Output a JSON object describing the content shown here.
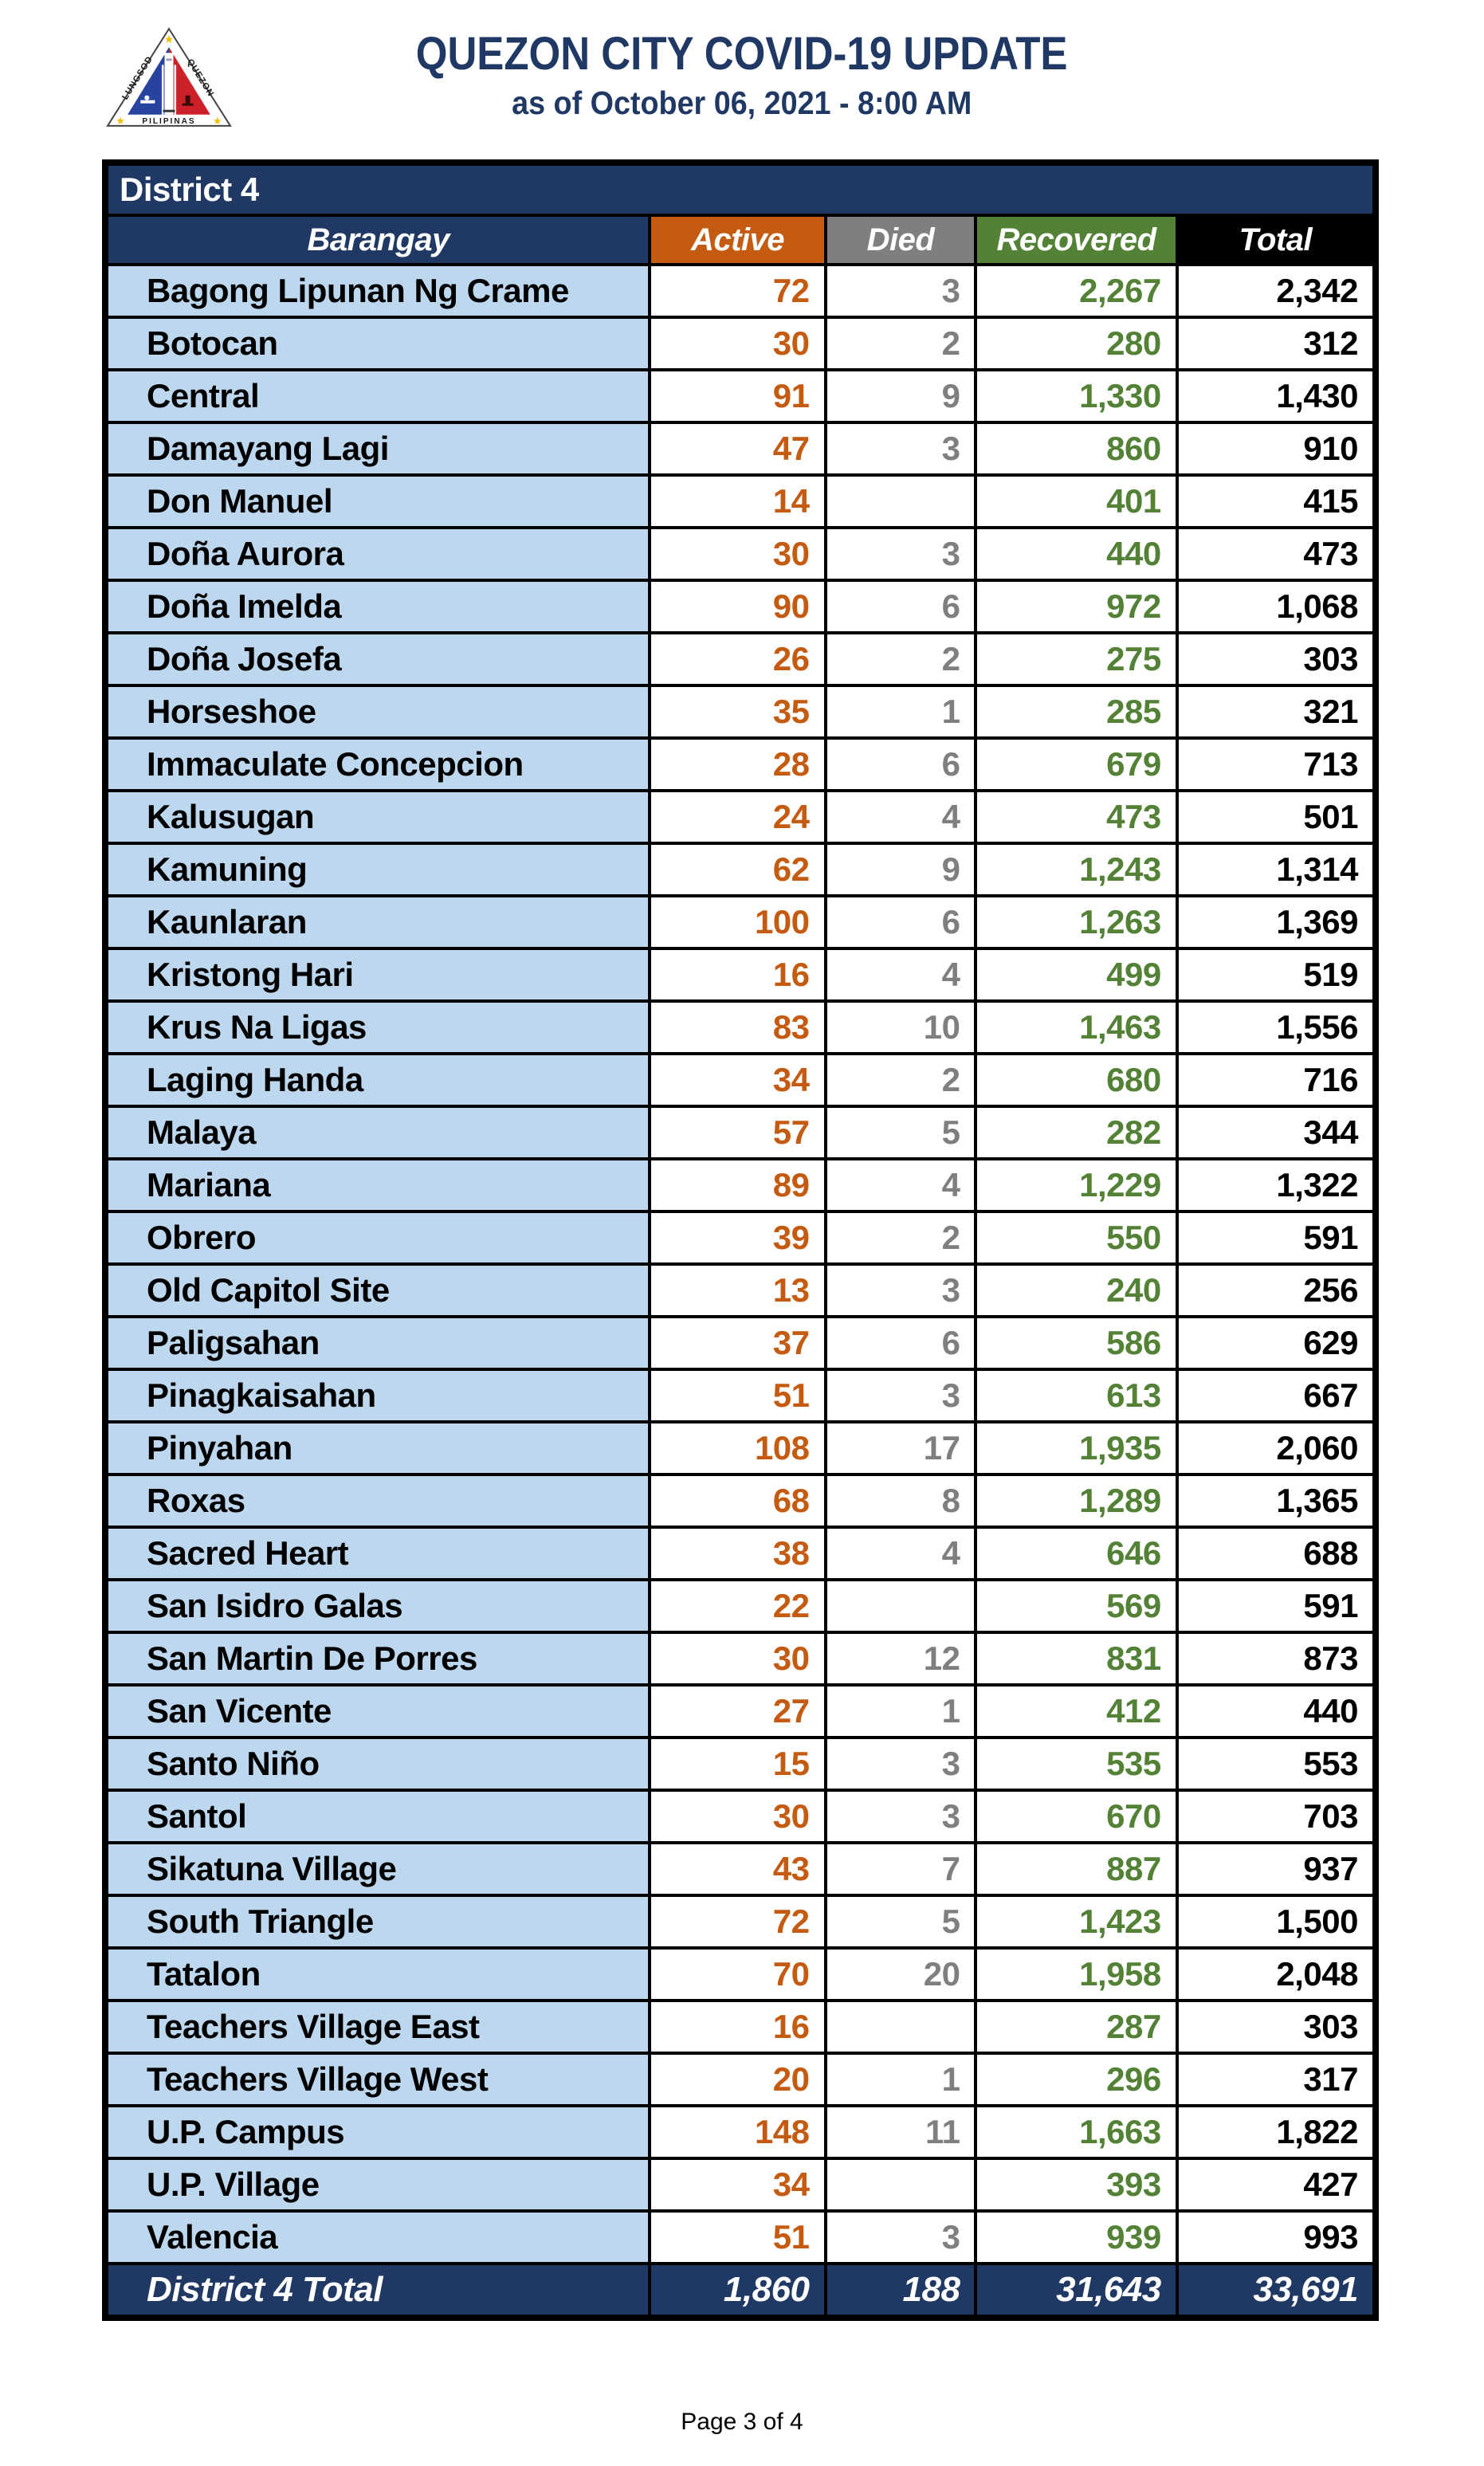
{
  "header": {
    "title": "QUEZON CITY COVID-19 UPDATE",
    "subtitle": "as of October 06, 2021 - 8:00 AM",
    "logo": {
      "name": "quezon-city-seal",
      "arc_left_text": "LUNGSOD",
      "arc_right_text": "QUEZON",
      "bottom_text": "PILIPINAS"
    }
  },
  "table": {
    "section_title": "District 4",
    "columns": [
      "Barangay",
      "Active",
      "Died",
      "Recovered",
      "Total"
    ],
    "rows": [
      [
        "Bagong Lipunan Ng Crame",
        "72",
        "3",
        "2,267",
        "2,342"
      ],
      [
        "Botocan",
        "30",
        "2",
        "280",
        "312"
      ],
      [
        "Central",
        "91",
        "9",
        "1,330",
        "1,430"
      ],
      [
        "Damayang Lagi",
        "47",
        "3",
        "860",
        "910"
      ],
      [
        "Don Manuel",
        "14",
        "",
        "401",
        "415"
      ],
      [
        "Doña Aurora",
        "30",
        "3",
        "440",
        "473"
      ],
      [
        "Doña Imelda",
        "90",
        "6",
        "972",
        "1,068"
      ],
      [
        "Doña Josefa",
        "26",
        "2",
        "275",
        "303"
      ],
      [
        "Horseshoe",
        "35",
        "1",
        "285",
        "321"
      ],
      [
        "Immaculate Concepcion",
        "28",
        "6",
        "679",
        "713"
      ],
      [
        "Kalusugan",
        "24",
        "4",
        "473",
        "501"
      ],
      [
        "Kamuning",
        "62",
        "9",
        "1,243",
        "1,314"
      ],
      [
        "Kaunlaran",
        "100",
        "6",
        "1,263",
        "1,369"
      ],
      [
        "Kristong Hari",
        "16",
        "4",
        "499",
        "519"
      ],
      [
        "Krus Na Ligas",
        "83",
        "10",
        "1,463",
        "1,556"
      ],
      [
        "Laging Handa",
        "34",
        "2",
        "680",
        "716"
      ],
      [
        "Malaya",
        "57",
        "5",
        "282",
        "344"
      ],
      [
        "Mariana",
        "89",
        "4",
        "1,229",
        "1,322"
      ],
      [
        "Obrero",
        "39",
        "2",
        "550",
        "591"
      ],
      [
        "Old Capitol Site",
        "13",
        "3",
        "240",
        "256"
      ],
      [
        "Paligsahan",
        "37",
        "6",
        "586",
        "629"
      ],
      [
        "Pinagkaisahan",
        "51",
        "3",
        "613",
        "667"
      ],
      [
        "Pinyahan",
        "108",
        "17",
        "1,935",
        "2,060"
      ],
      [
        "Roxas",
        "68",
        "8",
        "1,289",
        "1,365"
      ],
      [
        "Sacred Heart",
        "38",
        "4",
        "646",
        "688"
      ],
      [
        "San Isidro Galas",
        "22",
        "",
        "569",
        "591"
      ],
      [
        "San Martin De Porres",
        "30",
        "12",
        "831",
        "873"
      ],
      [
        "San Vicente",
        "27",
        "1",
        "412",
        "440"
      ],
      [
        "Santo Niño",
        "15",
        "3",
        "535",
        "553"
      ],
      [
        "Santol",
        "30",
        "3",
        "670",
        "703"
      ],
      [
        "Sikatuna Village",
        "43",
        "7",
        "887",
        "937"
      ],
      [
        "South Triangle",
        "72",
        "5",
        "1,423",
        "1,500"
      ],
      [
        "Tatalon",
        "70",
        "20",
        "1,958",
        "2,048"
      ],
      [
        "Teachers Village East",
        "16",
        "",
        "287",
        "303"
      ],
      [
        "Teachers Village West",
        "20",
        "1",
        "296",
        "317"
      ],
      [
        "U.P. Campus",
        "148",
        "11",
        "1,663",
        "1,822"
      ],
      [
        "U.P. Village",
        "34",
        "",
        "393",
        "427"
      ],
      [
        "Valencia",
        "51",
        "3",
        "939",
        "993"
      ]
    ],
    "total": {
      "label": "District 4 Total",
      "active": "1,860",
      "died": "188",
      "recovered": "31,643",
      "total": "33,691"
    }
  },
  "footer": {
    "page_label": "Page 3 of 4"
  },
  "colors": {
    "navy": "#1F3864",
    "light_blue": "#BDD7EE",
    "orange": "#C55A11",
    "gray": "#7F7F7F",
    "green": "#538135",
    "black": "#000000"
  }
}
